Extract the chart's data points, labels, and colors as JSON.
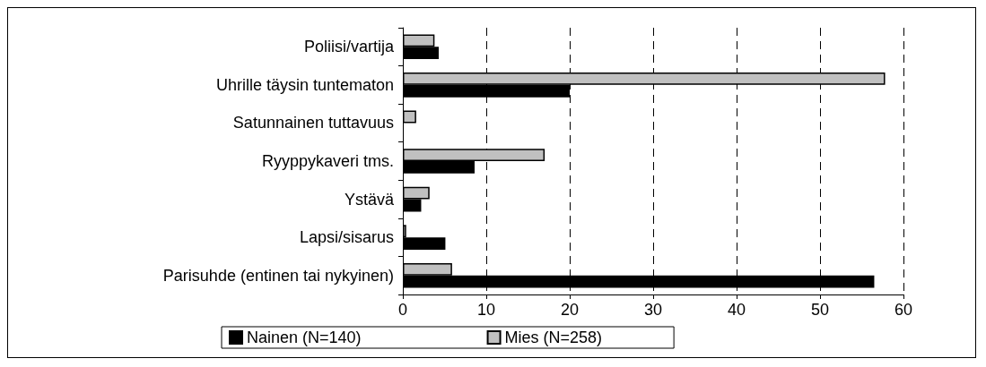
{
  "chart_data": {
    "type": "bar",
    "orientation": "horizontal",
    "categories": [
      "Poliisi/vartija",
      "Uhrille täysin tuntematon",
      "Satunnainen tuttavuus",
      "Ryyppykaveri tms.",
      "Ystävä",
      "Lapsi/sisarus",
      "Parisuhde (entinen tai nykyinen)"
    ],
    "series": [
      {
        "name": "Nainen (N=140)",
        "color": "#000000",
        "values": [
          4.3,
          20,
          null,
          8.6,
          2.2,
          5.1,
          56.5
        ]
      },
      {
        "name": "Mies (N=258)",
        "color": "#c0c0c0",
        "values": [
          3.8,
          57.8,
          1.6,
          17,
          3.2,
          0.4,
          5.9
        ]
      }
    ],
    "xlim": [
      0,
      60
    ],
    "xticks": [
      0,
      10,
      20,
      30,
      40,
      50,
      60
    ],
    "grid": "x",
    "legend": "bottom"
  }
}
